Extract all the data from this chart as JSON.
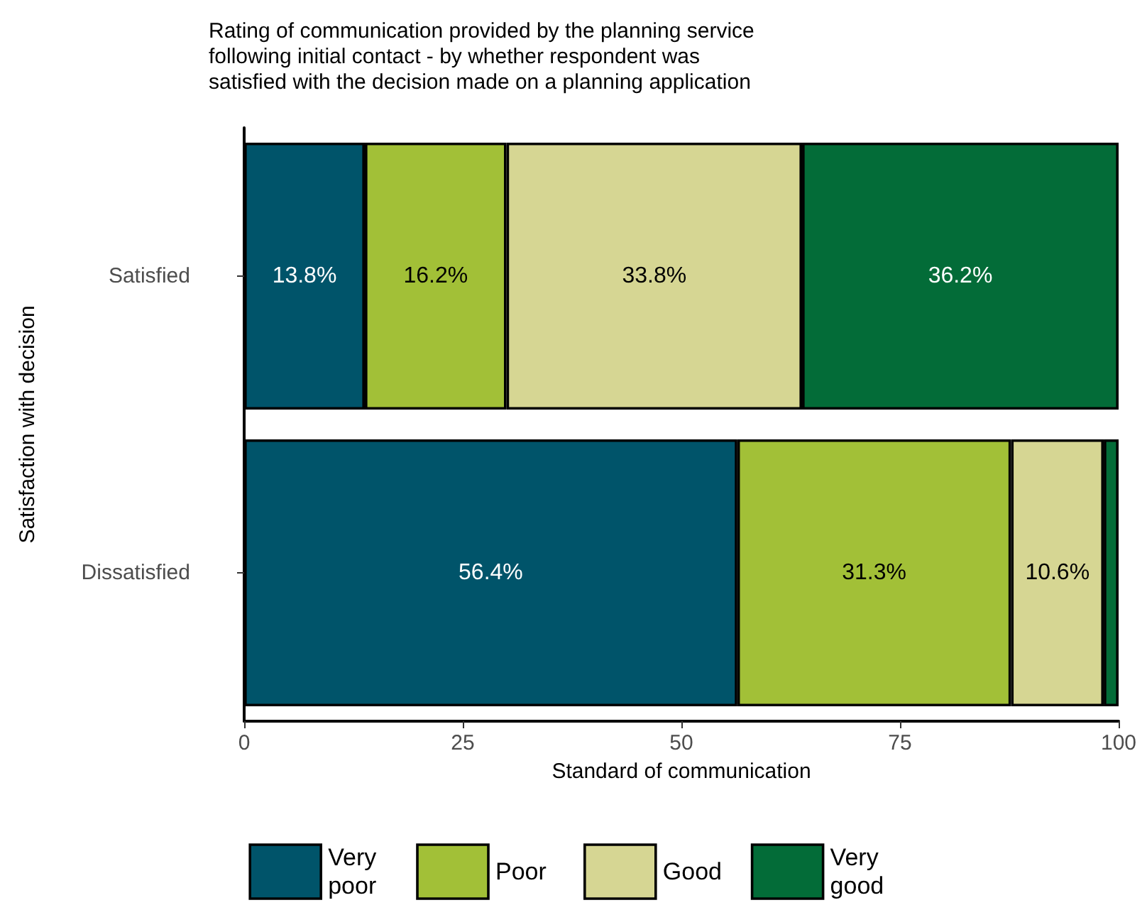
{
  "chart_data": {
    "type": "bar",
    "orientation": "horizontal",
    "stacked": true,
    "title": "Rating of communication provided by the planning service\nfollowing initial contact - by whether respondent was\nsatisfied with the decision made on a planning application",
    "xlabel": "Standard of communication",
    "ylabel": "Satisfaction with decision",
    "categories": [
      "Satisfied",
      "Dissatisfied"
    ],
    "series": [
      {
        "name": "Very poor",
        "color": "#00546a",
        "values": [
          13.8,
          56.4
        ],
        "value_labels": [
          "13.8%",
          "56.4%"
        ]
      },
      {
        "name": "Poor",
        "color": "#a2c037",
        "values": [
          16.2,
          31.3
        ],
        "value_labels": [
          "16.2%",
          "31.3%"
        ]
      },
      {
        "name": "Good",
        "color": "#d6d693",
        "values": [
          33.8,
          10.6
        ],
        "value_labels": [
          "33.8%",
          "10.6%"
        ]
      },
      {
        "name": "Very good",
        "color": "#036c38",
        "values": [
          36.2,
          1.7
        ],
        "value_labels": [
          "36.2%",
          null
        ]
      }
    ],
    "xlim": [
      0,
      100
    ],
    "xticks": [
      0,
      25,
      50,
      75,
      100
    ],
    "grid": false,
    "legend": "bottom"
  }
}
